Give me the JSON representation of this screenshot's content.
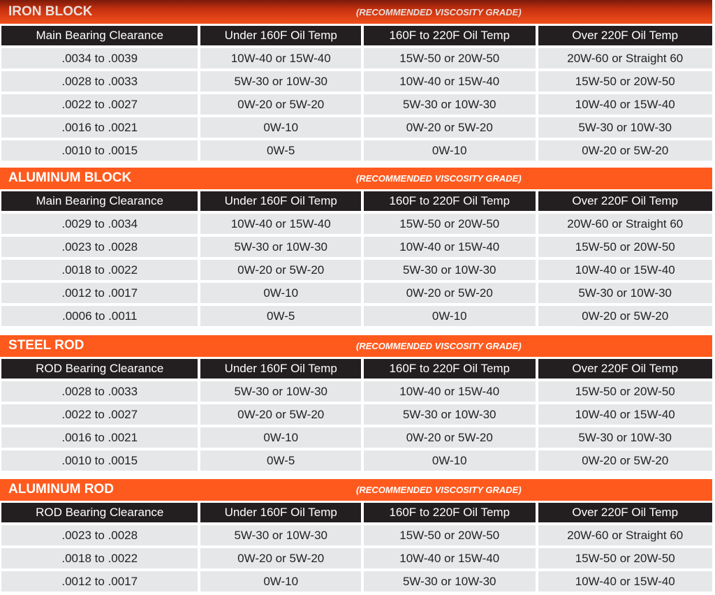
{
  "subtitle": "(RECOMMENDED VISCOSITY GRADE)",
  "colors": {
    "bar": "#ff5a1e",
    "header": "#231f20",
    "cell": "#e6e7e9"
  },
  "sections": [
    {
      "title": "IRON BLOCK",
      "headers": [
        "Main Bearing Clearance",
        "Under 160F Oil Temp",
        "160F to 220F Oil Temp",
        "Over 220F Oil Temp"
      ],
      "rows": [
        [
          ".0034 to .0039",
          "10W-40 or 15W-40",
          "15W-50 or 20W-50",
          "20W-60 or Straight 60"
        ],
        [
          ".0028 to .0033",
          "5W-30 or 10W-30",
          "10W-40 or 15W-40",
          "15W-50 or 20W-50"
        ],
        [
          ".0022 to .0027",
          "0W-20 or 5W-20",
          "5W-30 or 10W-30",
          "10W-40 or 15W-40"
        ],
        [
          ".0016 to .0021",
          "0W-10",
          "0W-20 or 5W-20",
          "5W-30 or 10W-30"
        ],
        [
          ".0010 to .0015",
          "0W-5",
          "0W-10",
          "0W-20 or 5W-20"
        ]
      ]
    },
    {
      "title": "ALUMINUM BLOCK",
      "headers": [
        "Main Bearing Clearance",
        "Under 160F Oil Temp",
        "160F to 220F Oil Temp",
        "Over 220F Oil Temp"
      ],
      "rows": [
        [
          ".0029 to .0034",
          "10W-40 or 15W-40",
          "15W-50 or 20W-50",
          "20W-60 or Straight 60"
        ],
        [
          ".0023 to .0028",
          "5W-30 or 10W-30",
          "10W-40 or 15W-40",
          "15W-50 or 20W-50"
        ],
        [
          ".0018 to .0022",
          "0W-20 or 5W-20",
          "5W-30 or 10W-30",
          "10W-40 or 15W-40"
        ],
        [
          ".0012 to .0017",
          "0W-10",
          "0W-20 or 5W-20",
          "5W-30 or 10W-30"
        ],
        [
          ".0006 to .0011",
          "0W-5",
          "0W-10",
          "0W-20 or 5W-20"
        ]
      ]
    },
    {
      "title": "STEEL ROD",
      "headers": [
        "ROD Bearing Clearance",
        "Under 160F Oil Temp",
        "160F to 220F Oil Temp",
        "Over 220F Oil Temp"
      ],
      "rows": [
        [
          ".0028 to .0033",
          "5W-30 or 10W-30",
          "10W-40 or 15W-40",
          "15W-50 or 20W-50"
        ],
        [
          ".0022 to .0027",
          "0W-20 or 5W-20",
          "5W-30 or 10W-30",
          "10W-40 or 15W-40"
        ],
        [
          ".0016 to .0021",
          "0W-10",
          "0W-20 or 5W-20",
          "5W-30 or 10W-30"
        ],
        [
          ".0010 to .0015",
          "0W-5",
          "0W-10",
          "0W-20 or 5W-20"
        ]
      ]
    },
    {
      "title": "ALUMINUM ROD",
      "headers": [
        "ROD Bearing Clearance",
        "Under 160F Oil Temp",
        "160F to 220F Oil Temp",
        "Over 220F Oil Temp"
      ],
      "rows": [
        [
          ".0023 to .0028",
          "5W-30 or 10W-30",
          "15W-50 or 20W-50",
          "20W-60 or Straight 60"
        ],
        [
          ".0018 to .0022",
          "0W-20 or 5W-20",
          "10W-40 or 15W-40",
          "15W-50 or 20W-50"
        ],
        [
          ".0012 to .0017",
          "0W-10",
          "5W-30 or 10W-30",
          "10W-40 or 15W-40"
        ]
      ]
    }
  ]
}
